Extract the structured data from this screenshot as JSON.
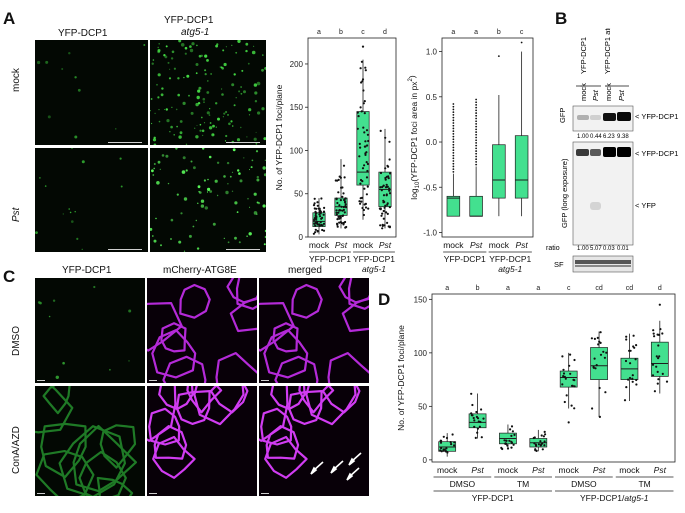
{
  "panels": {
    "A": {
      "label": "A",
      "col_titles": [
        "YFP-DCP1",
        "YFP-DCP1",
        "atg5-1"
      ],
      "row_labels": [
        "mock",
        "Pst"
      ]
    },
    "B": {
      "label": "B",
      "lane_headers": [
        "YFP-DCP1",
        "YFP-DCP1 atg5-1"
      ],
      "lanes": [
        "mock",
        "Pst",
        "mock",
        "Pst"
      ],
      "left_labels": [
        "GFP",
        "GFP (long exposure)",
        "ratio",
        "SF"
      ],
      "band_labels": [
        "< YFP-DCP1",
        "< YFP-DCP1",
        "< YFP"
      ],
      "ratios_top": [
        "1.00",
        "0.44",
        "6.23",
        "9.38"
      ],
      "ratios_bottom": [
        "1.00",
        "5.07",
        "0.03",
        "0.01"
      ]
    },
    "C": {
      "label": "C",
      "col_titles": [
        "YFP-DCP1",
        "mCherry-ATG8E",
        "merged"
      ],
      "row_labels": [
        "DMSO",
        "ConA/AZD"
      ]
    },
    "D": {
      "label": "D"
    }
  },
  "colors": {
    "box_fill": "#43e08f",
    "box_stroke": "#1e1e1e",
    "point": "#111111",
    "yfp": "#4cff4c",
    "mcherry": "#d040f0"
  },
  "chart_data": [
    {
      "id": "A-foci",
      "type": "box",
      "ylabel": "No. of YFP-DCP1 foci/plane",
      "ylim": [
        0,
        230
      ],
      "yticks": [
        0,
        50,
        100,
        150,
        200
      ],
      "tick_labels": [
        "0",
        "50",
        "100",
        "150",
        "200"
      ],
      "categories": [
        "mock",
        "Pst",
        "mock",
        "Pst"
      ],
      "italic_categories": [
        1,
        3
      ],
      "groups": [
        {
          "label": "YFP-DCP1",
          "span": [
            0,
            1
          ]
        },
        {
          "label": "YFP-DCP1",
          "sub": "atg5-1",
          "span": [
            2,
            3
          ]
        }
      ],
      "letters": [
        "a",
        "b",
        "c",
        "d"
      ],
      "boxes": [
        {
          "min": 3,
          "q1": 12,
          "median": 18,
          "q3": 28,
          "max": 45
        },
        {
          "min": 10,
          "q1": 25,
          "median": 35,
          "q3": 45,
          "max": 90
        },
        {
          "min": 20,
          "q1": 60,
          "median": 75,
          "q3": 145,
          "max": 205
        },
        {
          "min": 10,
          "q1": 35,
          "median": 55,
          "q3": 75,
          "max": 125
        }
      ],
      "outliers": [
        [],
        [],
        [
          220
        ],
        []
      ]
    },
    {
      "id": "A-area",
      "type": "box",
      "ylabel": "log10(YFP-DCP1 foci area in px2)",
      "ylim": [
        -1.05,
        1.15
      ],
      "yticks": [
        -1.0,
        -0.5,
        0.0,
        0.5,
        1.0
      ],
      "tick_labels": [
        "-1.0",
        "-0.5",
        "0.0",
        "0.5",
        "1.0"
      ],
      "categories": [
        "mock",
        "Pst",
        "mock",
        "Pst"
      ],
      "italic_categories": [
        1,
        3
      ],
      "groups": [
        {
          "label": "YFP-DCP1",
          "span": [
            0,
            1
          ]
        },
        {
          "label": "YFP-DCP1",
          "sub": "atg5-1",
          "span": [
            2,
            3
          ]
        }
      ],
      "letters": [
        "a",
        "a",
        "b",
        "c"
      ],
      "boxes": [
        {
          "min": -0.82,
          "q1": -0.82,
          "median": -0.62,
          "q3": -0.6,
          "max": -0.35
        },
        {
          "min": -0.82,
          "q1": -0.82,
          "median": -0.82,
          "q3": -0.6,
          "max": -0.27
        },
        {
          "min": -0.82,
          "q1": -0.62,
          "median": -0.42,
          "q3": -0.03,
          "max": 0.52
        },
        {
          "min": -0.82,
          "q1": -0.62,
          "median": -0.42,
          "q3": 0.07,
          "max": 1.0
        }
      ],
      "outliers": [
        [
          -0.33,
          -0.3,
          -0.27,
          -0.24,
          -0.21,
          -0.18,
          -0.15,
          -0.12,
          -0.09,
          -0.06,
          -0.03,
          0.0,
          0.03,
          0.06,
          0.09,
          0.12,
          0.15,
          0.18,
          0.21,
          0.24,
          0.27,
          0.3,
          0.33,
          0.36,
          0.39,
          0.42
        ],
        [
          -0.25,
          -0.22,
          -0.19,
          -0.16,
          -0.13,
          -0.1,
          -0.07,
          -0.04,
          -0.01,
          0.02,
          0.05,
          0.08,
          0.11,
          0.14,
          0.17,
          0.2,
          0.23,
          0.26,
          0.29,
          0.32,
          0.35,
          0.38,
          0.41,
          0.44,
          0.47
        ],
        [
          0.95
        ],
        [
          1.1
        ]
      ]
    },
    {
      "id": "D-foci",
      "type": "box",
      "ylabel": "No. of YFP-DCP1 foci/plane",
      "ylim": [
        -2,
        155
      ],
      "yticks": [
        0,
        50,
        100,
        150
      ],
      "tick_labels": [
        "0",
        "50",
        "100",
        "150"
      ],
      "categories": [
        "mock",
        "Pst",
        "mock",
        "Pst",
        "mock",
        "Pst",
        "mock",
        "Pst"
      ],
      "italic_categories": [
        1,
        3,
        5,
        7
      ],
      "subgroups": [
        {
          "label": "DMSO",
          "span": [
            0,
            1
          ]
        },
        {
          "label": "TM",
          "span": [
            2,
            3
          ]
        },
        {
          "label": "DMSO",
          "span": [
            4,
            5
          ]
        },
        {
          "label": "TM",
          "span": [
            6,
            7
          ]
        }
      ],
      "groups": [
        {
          "label": "YFP-DCP1",
          "span": [
            0,
            3
          ]
        },
        {
          "label": "YFP-DCP1/",
          "sub": "atg5-1",
          "span": [
            4,
            7
          ]
        }
      ],
      "letters": [
        "a",
        "b",
        "a",
        "a",
        "c",
        "cd",
        "cd",
        "d"
      ],
      "boxes": [
        {
          "min": 3,
          "q1": 8,
          "median": 12,
          "q3": 17,
          "max": 25
        },
        {
          "min": 20,
          "q1": 30,
          "median": 35,
          "q3": 43,
          "max": 62
        },
        {
          "min": 10,
          "q1": 15,
          "median": 20,
          "q3": 25,
          "max": 33
        },
        {
          "min": 8,
          "q1": 12,
          "median": 16,
          "q3": 20,
          "max": 28
        },
        {
          "min": 48,
          "q1": 68,
          "median": 77,
          "q3": 83,
          "max": 100
        },
        {
          "min": 40,
          "q1": 75,
          "median": 88,
          "q3": 105,
          "max": 120
        },
        {
          "min": 55,
          "q1": 75,
          "median": 85,
          "q3": 95,
          "max": 118
        },
        {
          "min": 62,
          "q1": 78,
          "median": 90,
          "q3": 110,
          "max": 130
        }
      ],
      "outliers": [
        [],
        [],
        [],
        [],
        [
          35
        ],
        [],
        [],
        [
          145
        ]
      ]
    }
  ]
}
